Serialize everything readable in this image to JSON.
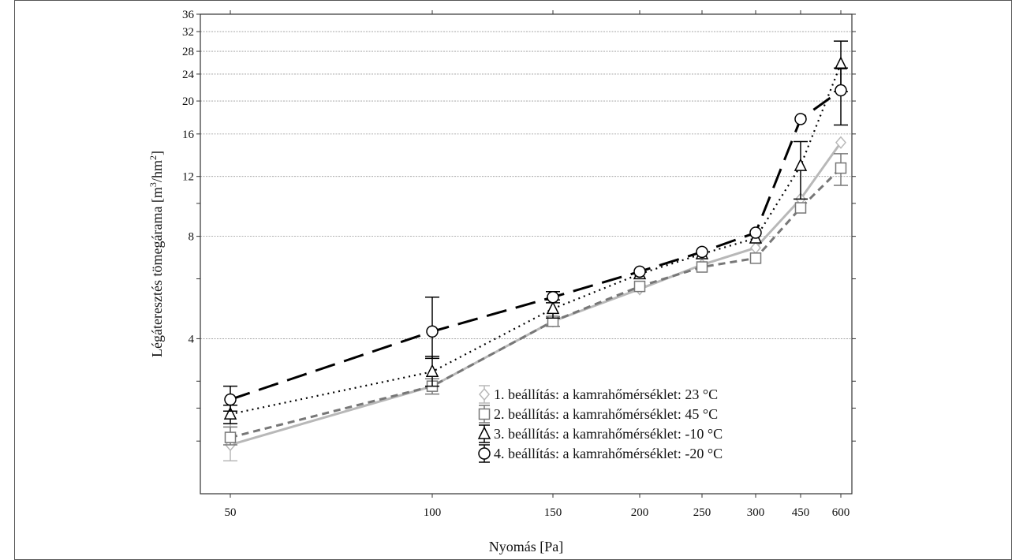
{
  "chart_data": {
    "type": "line",
    "title": "",
    "xlabel": "Nyomás [Pa]",
    "ylabel_main": "Légáteresztés tömegárama [m",
    "ylabel_sup1": "3",
    "ylabel_mid": "/hm",
    "ylabel_sup2": "2",
    "ylabel_end": "]",
    "categories": [
      "50",
      "100",
      "150",
      "200",
      "250",
      "300",
      "450",
      "600"
    ],
    "x": [
      50,
      100,
      150,
      200,
      250,
      300,
      450,
      600
    ],
    "yscale": "log",
    "ylim": [
      1.4,
      36
    ],
    "ytick_labels": [
      {
        "value": 4,
        "label": "4"
      },
      {
        "value": 8,
        "label": "8"
      },
      {
        "value": 12,
        "label": "12"
      },
      {
        "value": 16,
        "label": "16"
      },
      {
        "value": 20,
        "label": "20"
      },
      {
        "value": 24,
        "label": "24"
      },
      {
        "value": 28,
        "label": "28"
      },
      {
        "value": 32,
        "label": "32"
      },
      {
        "value": 36,
        "label": "36"
      }
    ],
    "yminor_ticks": [
      2,
      2.5,
      3,
      6,
      10
    ],
    "grid": "horizontal",
    "legend_position": "bottom-right",
    "series": [
      {
        "name": "1. beállítás: a kamrahőmérséklet: 23 °C",
        "marker": "diamond",
        "color": "#b8b8b8",
        "line": "solid",
        "values": [
          1.95,
          2.9,
          4.5,
          5.6,
          6.6,
          7.4,
          10.3,
          15.1
        ],
        "err_low": [
          1.75,
          null,
          null,
          null,
          null,
          null,
          null,
          null
        ],
        "err_high": [
          2.25,
          null,
          null,
          null,
          null,
          null,
          null,
          null
        ]
      },
      {
        "name": "2. beállítás: a kamrahőmérséklet: 45 °C",
        "marker": "square",
        "color": "#777777",
        "line": "dashed",
        "values": [
          2.05,
          2.9,
          4.5,
          5.7,
          6.5,
          6.9,
          9.7,
          12.7
        ],
        "err_low": [
          1.95,
          2.75,
          4.35,
          null,
          null,
          null,
          null,
          11.3
        ],
        "err_high": [
          2.2,
          3.05,
          4.65,
          null,
          null,
          null,
          null,
          14.0
        ]
      },
      {
        "name": "3. beállítás: a kamrahőmérséklet: -10 °C",
        "marker": "triangle",
        "color": "#000000",
        "line": "dotted",
        "values": [
          2.4,
          3.2,
          4.9,
          6.2,
          7.1,
          7.9,
          12.9,
          25.7
        ],
        "err_low": [
          2.25,
          2.9,
          4.6,
          null,
          null,
          null,
          10.3,
          21.3
        ],
        "err_high": [
          2.55,
          3.55,
          5.2,
          null,
          null,
          null,
          15.2,
          30.0
        ]
      },
      {
        "name": "4. beállítás: a kamrahőmérséklet: -20 °C",
        "marker": "circle",
        "color": "#000000",
        "line": "longdash",
        "values": [
          2.65,
          4.2,
          5.3,
          6.3,
          7.2,
          8.2,
          17.7,
          21.5
        ],
        "err_low": [
          2.45,
          3.5,
          5.1,
          null,
          null,
          null,
          null,
          17.0
        ],
        "err_high": [
          2.9,
          5.3,
          5.5,
          null,
          null,
          null,
          null,
          25.0
        ]
      }
    ]
  }
}
